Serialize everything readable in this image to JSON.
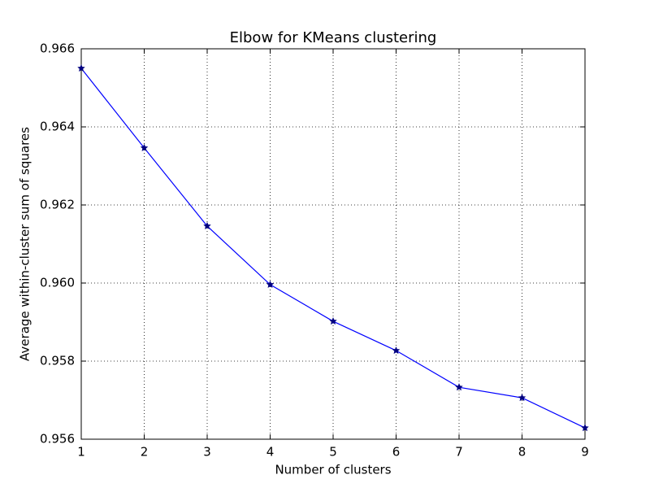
{
  "chart_data": {
    "type": "line",
    "title": "Elbow for KMeans clustering",
    "x_label": "Number of clusters",
    "y_label": "Average within-cluster sum of squares",
    "x": [
      1,
      2,
      3,
      4,
      5,
      6,
      7,
      8,
      9
    ],
    "values": [
      0.9655,
      0.96346,
      0.96146,
      0.95996,
      0.95902,
      0.95827,
      0.95733,
      0.95706,
      0.95629
    ],
    "color": "#0000ff",
    "marker_color": "#00007f",
    "xlim": [
      1,
      9
    ],
    "xticks": [
      1,
      2,
      3,
      4,
      5,
      6,
      7,
      8,
      9
    ],
    "ylim": [
      0.956,
      0.966
    ],
    "yticks": [
      0.956,
      0.958,
      {
        "value": 0.96,
        "label": "0.960"
      },
      0.962,
      0.964,
      0.966
    ],
    "grid": true
  }
}
